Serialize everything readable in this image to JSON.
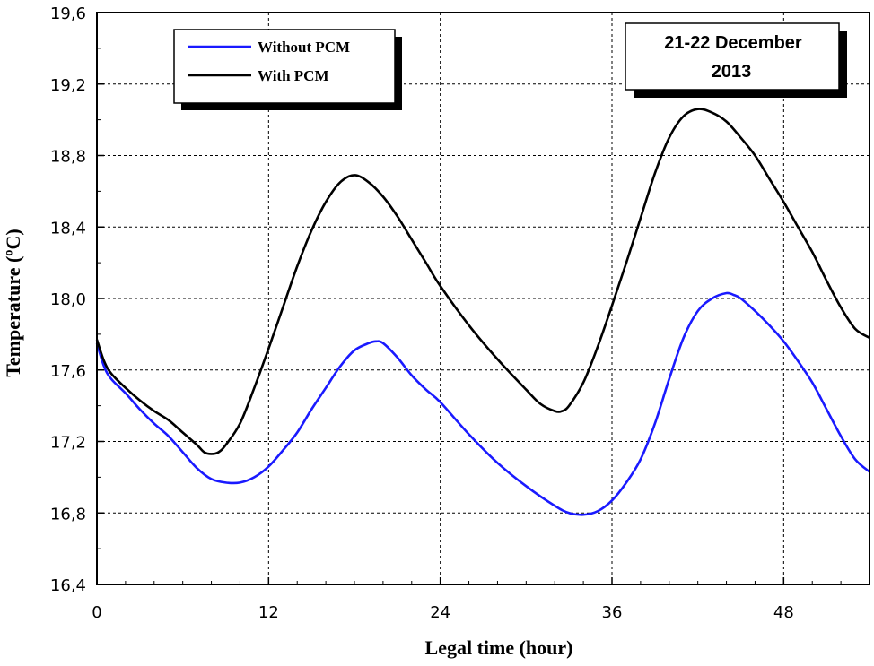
{
  "chart_data": {
    "type": "line",
    "title": "",
    "xlabel": "Legal time (hour)",
    "ylabel": "Temperature (ºC)",
    "xlim": [
      0,
      54
    ],
    "ylim": [
      16.4,
      19.6
    ],
    "x_ticks": [
      0,
      12,
      24,
      36,
      48
    ],
    "x_tick_labels": [
      "0",
      "12",
      "24",
      "36",
      "48"
    ],
    "y_ticks": [
      16.4,
      16.8,
      17.2,
      17.6,
      18.0,
      18.4,
      18.8,
      19.2,
      19.6
    ],
    "y_tick_labels": [
      "16,4",
      "16,8",
      "17,2",
      "17,6",
      "18,0",
      "18,4",
      "18,8",
      "19,2",
      "19,6"
    ],
    "grid": true,
    "legend_position": "top-left",
    "annotation": {
      "line1": "21-22  December",
      "line2": "2013"
    },
    "series": [
      {
        "name": "Without PCM",
        "color": "#1a1aff",
        "x": [
          0,
          0.5,
          1,
          2,
          3,
          4,
          5,
          6,
          7,
          8,
          9,
          10,
          11,
          12,
          13,
          14,
          15,
          16,
          17,
          18,
          19,
          19.5,
          20,
          21,
          22,
          23,
          24,
          26,
          28,
          30,
          32,
          33,
          34,
          35,
          36,
          37,
          38,
          39,
          40,
          41,
          42,
          43,
          44,
          44.5,
          45,
          46,
          47,
          48,
          49,
          50,
          51,
          52,
          53,
          54
        ],
        "values": [
          17.75,
          17.62,
          17.55,
          17.47,
          17.38,
          17.3,
          17.23,
          17.14,
          17.05,
          16.99,
          16.97,
          16.97,
          17.0,
          17.06,
          17.15,
          17.25,
          17.38,
          17.5,
          17.62,
          17.71,
          17.75,
          17.76,
          17.75,
          17.67,
          17.57,
          17.49,
          17.42,
          17.24,
          17.08,
          16.95,
          16.84,
          16.8,
          16.79,
          16.81,
          16.87,
          16.97,
          17.1,
          17.3,
          17.55,
          17.78,
          17.93,
          18.0,
          18.03,
          18.02,
          18.0,
          17.93,
          17.85,
          17.76,
          17.65,
          17.53,
          17.38,
          17.23,
          17.1,
          17.03
        ]
      },
      {
        "name": "With PCM",
        "color": "#000000",
        "x": [
          0,
          0.5,
          1,
          2,
          3,
          4,
          5,
          6,
          7,
          7.5,
          8,
          8.5,
          9,
          10,
          11,
          12,
          13,
          14,
          15,
          16,
          17,
          18,
          19,
          20,
          21,
          22,
          23,
          24,
          26,
          28,
          30,
          31,
          32,
          32.5,
          33,
          34,
          35,
          36,
          37,
          38,
          39,
          40,
          41,
          42,
          43,
          44,
          45,
          46,
          47,
          48,
          49,
          50,
          51,
          52,
          53,
          54
        ],
        "values": [
          17.77,
          17.65,
          17.58,
          17.5,
          17.43,
          17.37,
          17.32,
          17.25,
          17.18,
          17.14,
          17.13,
          17.14,
          17.18,
          17.3,
          17.5,
          17.72,
          17.95,
          18.18,
          18.38,
          18.54,
          18.65,
          18.69,
          18.65,
          18.57,
          18.46,
          18.33,
          18.2,
          18.07,
          17.85,
          17.66,
          17.49,
          17.41,
          17.37,
          17.37,
          17.4,
          17.53,
          17.73,
          17.96,
          18.2,
          18.45,
          18.7,
          18.9,
          19.02,
          19.06,
          19.04,
          18.99,
          18.9,
          18.8,
          18.67,
          18.54,
          18.4,
          18.26,
          18.1,
          17.95,
          17.83,
          17.78
        ]
      }
    ]
  }
}
